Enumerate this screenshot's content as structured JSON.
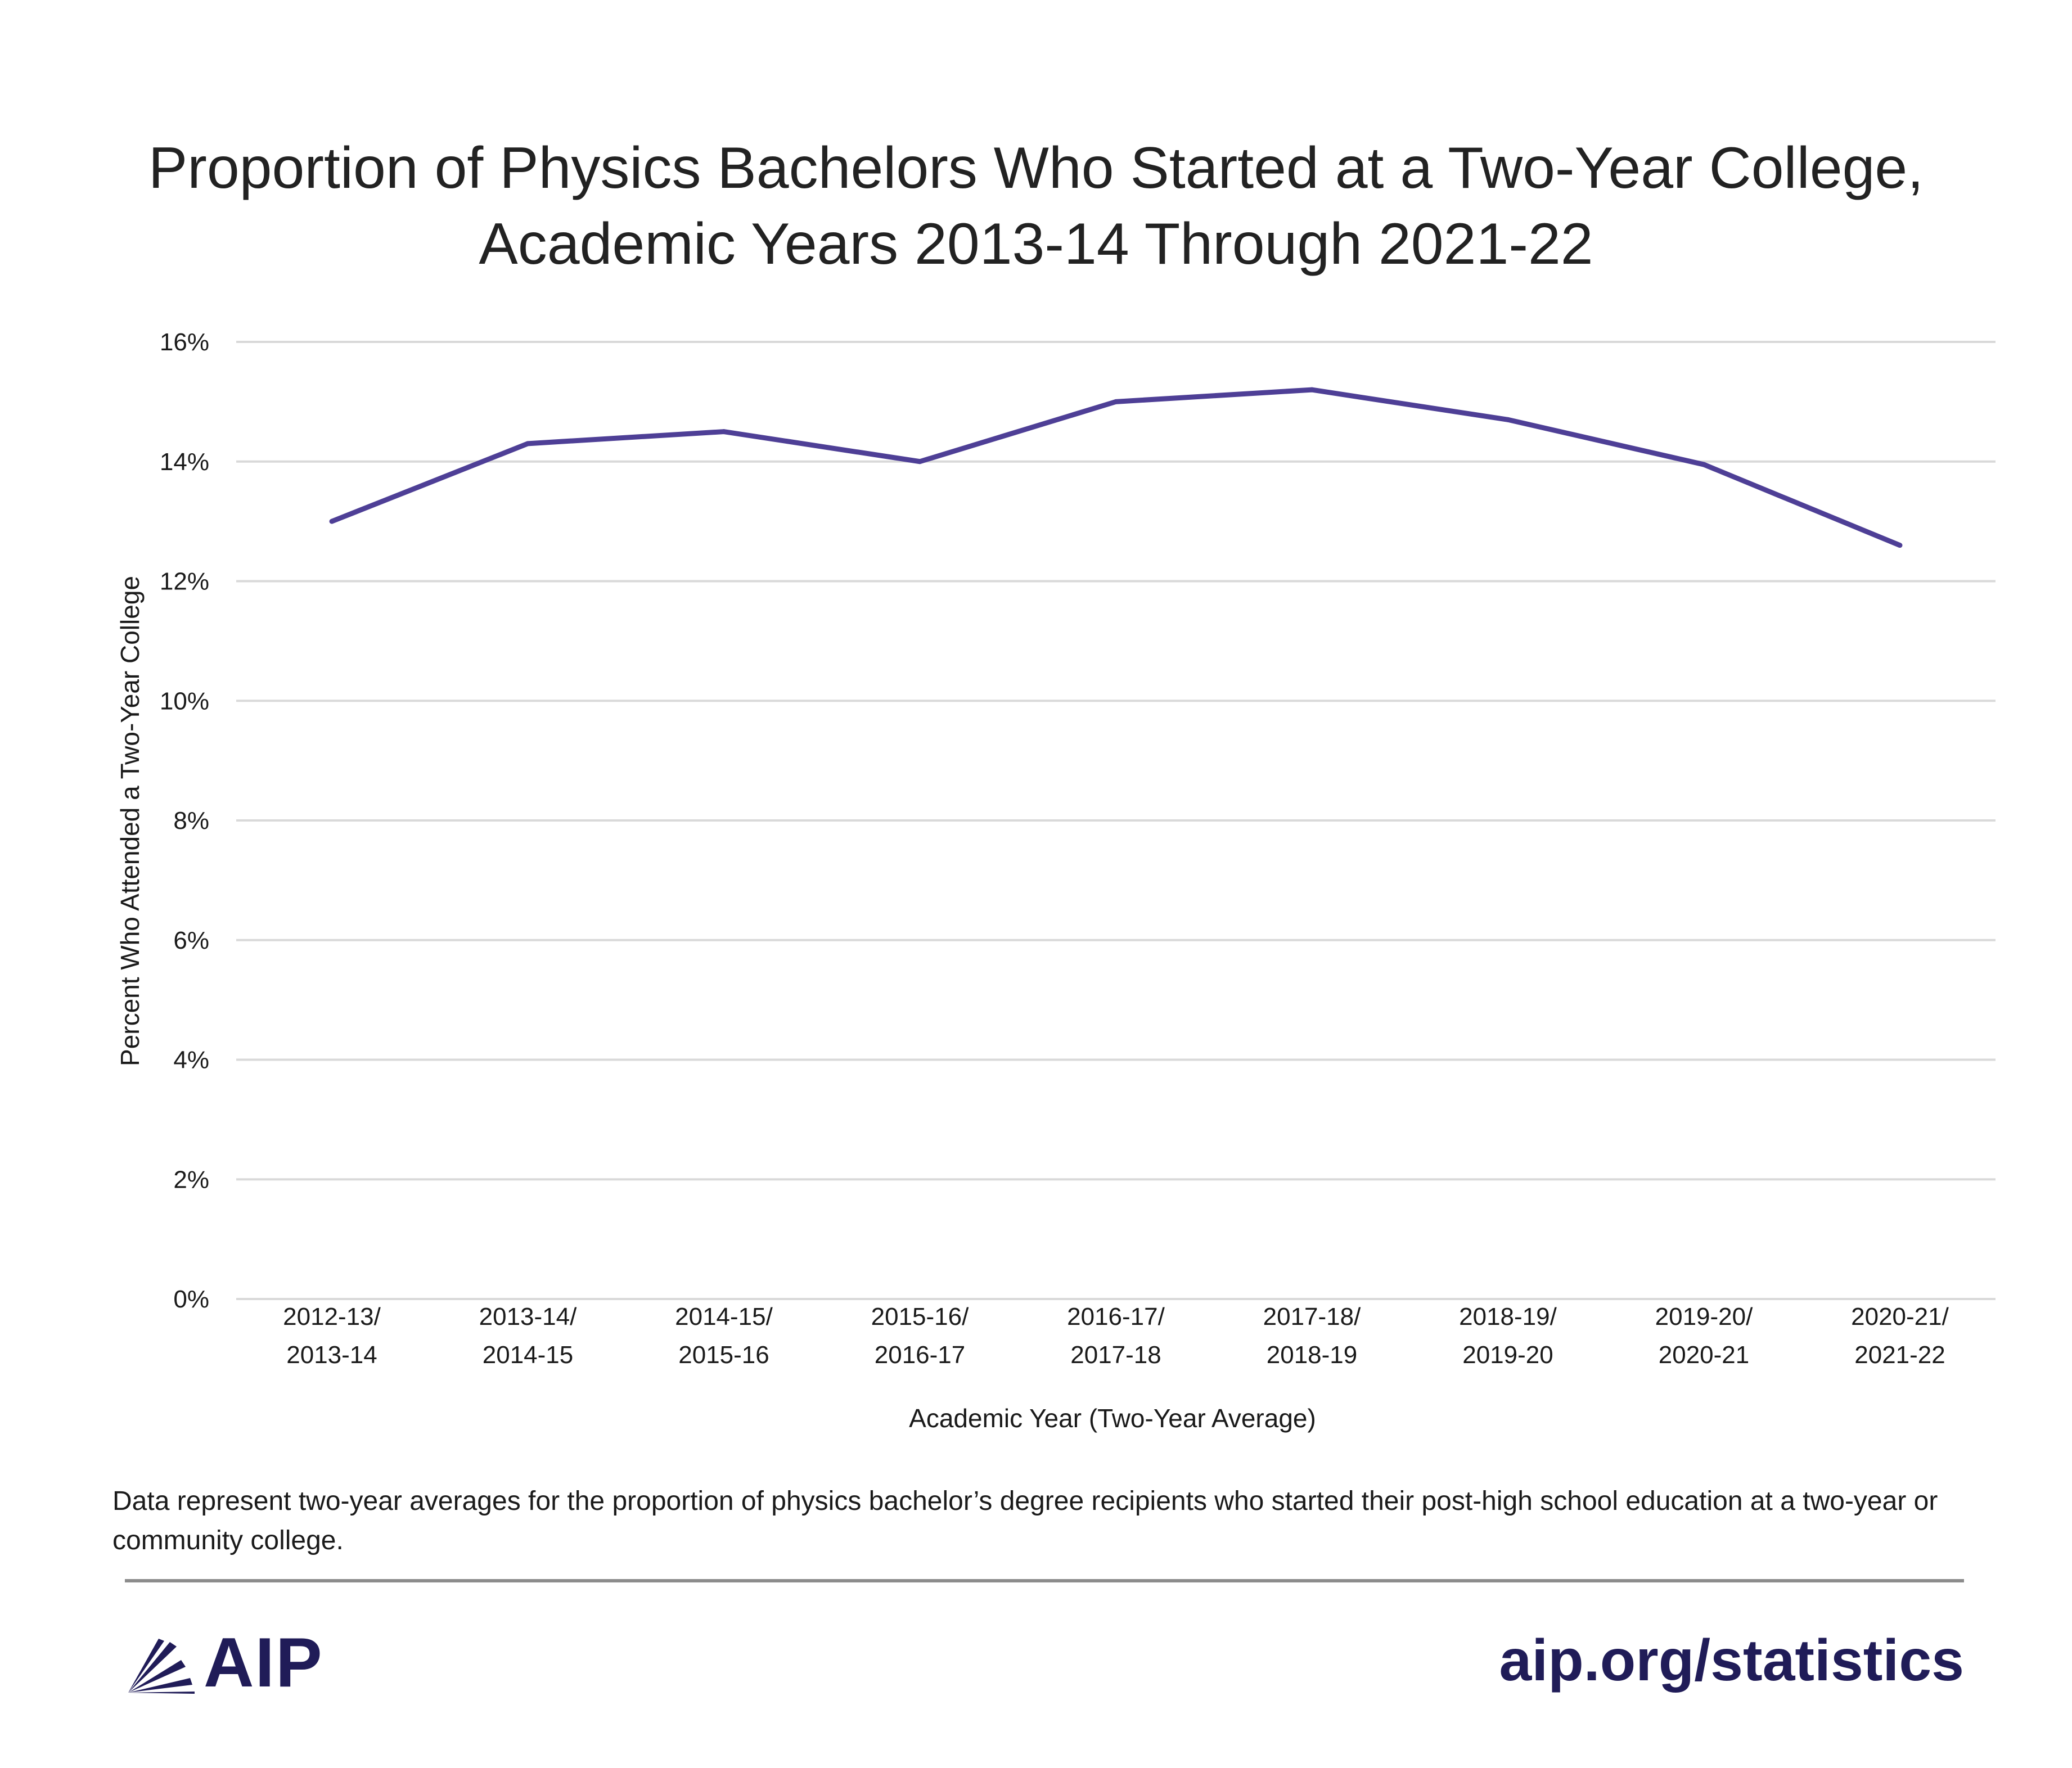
{
  "title_lines": [
    "Proportion of Physics Bachelors Who Started at a Two-Year College,",
    "Academic Years 2013-14 Through 2021-22"
  ],
  "colors": {
    "line": "#4e3f96",
    "grid": "#d9d9d9",
    "brand": "#201c58"
  },
  "chart_data": {
    "type": "line",
    "categories": [
      [
        "2012-13/",
        "2013-14"
      ],
      [
        "2013-14/",
        "2014-15"
      ],
      [
        "2014-15/",
        "2015-16"
      ],
      [
        "2015-16/",
        "2016-17"
      ],
      [
        "2016-17/",
        "2017-18"
      ],
      [
        "2017-18/",
        "2018-19"
      ],
      [
        "2018-19/",
        "2019-20"
      ],
      [
        "2019-20/",
        "2020-21"
      ],
      [
        "2020-21/",
        "2021-22"
      ]
    ],
    "series": [
      {
        "values": [
          13.0,
          14.3,
          14.5,
          14.0,
          15.0,
          15.2,
          14.7,
          13.95,
          12.6
        ]
      }
    ],
    "ylim": [
      0,
      16
    ],
    "yticks": [
      0,
      2,
      4,
      6,
      8,
      10,
      12,
      14,
      16
    ],
    "ytick_labels": [
      "0%",
      "2%",
      "4%",
      "6%",
      "8%",
      "10%",
      "12%",
      "14%",
      "16%"
    ],
    "xlabel": "Academic Year (Two-Year Average)",
    "ylabel": "Percent Who Attended a Two-Year College",
    "grid": true,
    "legend": "none"
  },
  "note": "Data represent two-year averages for the proportion of physics bachelor’s degree recipients who started their post-high school education at a two-year or community college.",
  "footer": {
    "logo_text": "AIP",
    "url": "aip.org/statistics"
  }
}
